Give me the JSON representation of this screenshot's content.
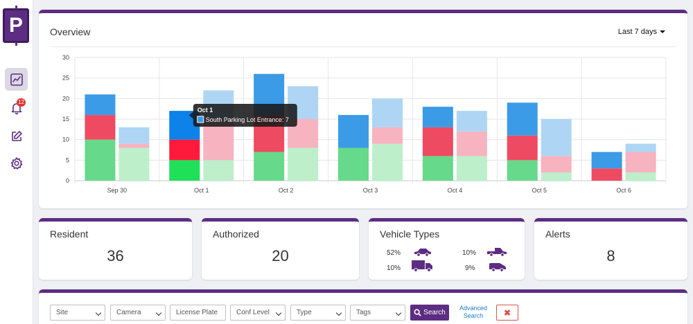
{
  "sidebar": {
    "logo_text": "P",
    "alerts_badge": "12",
    "items": [
      {
        "name": "analytics",
        "icon": "chart-line-icon",
        "active": true
      },
      {
        "name": "alerts",
        "icon": "bell-icon",
        "active": false
      },
      {
        "name": "edit",
        "icon": "edit-icon",
        "active": false
      },
      {
        "name": "settings",
        "icon": "gear-icon",
        "active": false
      }
    ]
  },
  "overview": {
    "title": "Overview",
    "range": "Last 7 days"
  },
  "chart_data": {
    "type": "bar",
    "stacked": true,
    "grouped": true,
    "categories": [
      "Sep 30",
      "Oct 1",
      "Oct 2",
      "Oct 3",
      "Oct 4",
      "Oct 5",
      "Oct 6"
    ],
    "ylim": [
      0,
      30
    ],
    "yticks": [
      0,
      5,
      10,
      15,
      20,
      25,
      30
    ],
    "grid": true,
    "groups": [
      {
        "colors": [
          "#66d98a",
          "#ee4a62",
          "#3b9be6"
        ],
        "series": [
          {
            "values": [
              10,
              5,
              7,
              8,
              6,
              5,
              0
            ]
          },
          {
            "values": [
              6,
              5,
              9,
              0,
              7,
              6,
              3
            ]
          },
          {
            "values": [
              5,
              7,
              10,
              8,
              5,
              8,
              4
            ]
          }
        ]
      },
      {
        "colors": [
          "#bdefcb",
          "#f7b3bf",
          "#aed6f4"
        ],
        "series": [
          {
            "values": [
              8,
              5,
              8,
              9,
              6,
              2,
              2
            ]
          },
          {
            "values": [
              1,
              10,
              7,
              4,
              6,
              4,
              5
            ]
          },
          {
            "values": [
              4,
              7,
              8,
              7,
              5,
              9,
              2
            ]
          }
        ]
      }
    ],
    "tooltip": {
      "category": "Oct 1",
      "title": "Oct 1",
      "label": "South Parking Lot Entrance: 7",
      "swatch_color": "#3b9be6"
    }
  },
  "stats": {
    "resident": {
      "title": "Resident",
      "value": "36"
    },
    "authorized": {
      "title": "Authorized",
      "value": "20"
    },
    "vehicle_types": {
      "title": "Vehicle Types",
      "items": [
        {
          "pct": "52%",
          "icon": "car-icon"
        },
        {
          "pct": "10%",
          "icon": "pickup-truck-icon"
        },
        {
          "pct": "10%",
          "icon": "box-truck-icon"
        },
        {
          "pct": "9%",
          "icon": "van-icon"
        }
      ]
    },
    "alerts": {
      "title": "Alerts",
      "value": "8"
    }
  },
  "filters": {
    "site": "Site",
    "camera": "Camera",
    "license_plate_placeholder": "License Plate",
    "conf_level": "Conf Level",
    "type": "Type",
    "tags": "Tags",
    "search_label": "Search",
    "advanced_search": "Advanced Search",
    "clear_icon": "times-icon"
  },
  "colors": {
    "brand": "#5c2d82",
    "link": "#1a7bc9"
  }
}
